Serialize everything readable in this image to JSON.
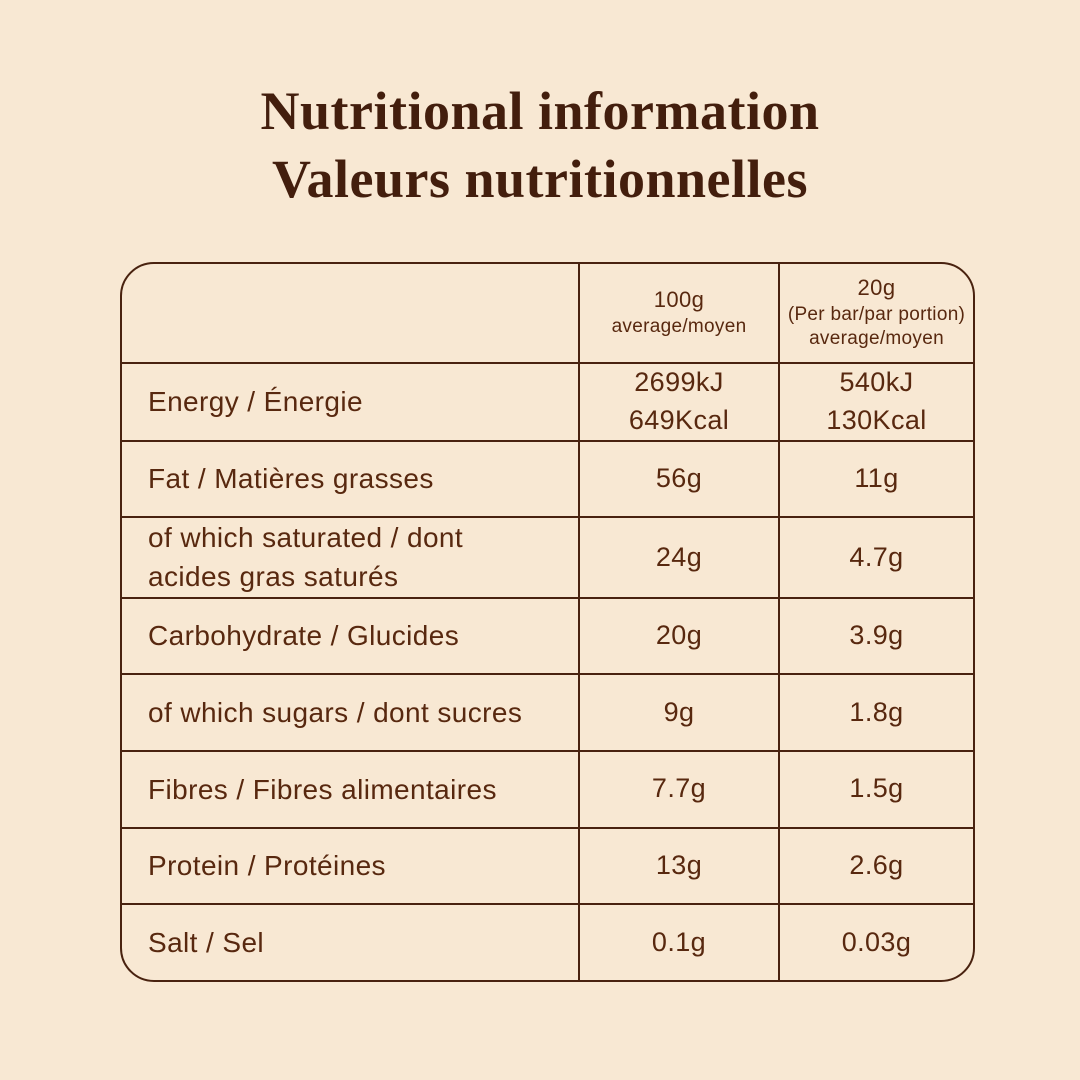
{
  "colors": {
    "background": "#f8e8d3",
    "title_text": "#431e0d",
    "table_text": "#58280f",
    "border": "#49220f"
  },
  "title": {
    "line1": "Nutritional information",
    "line2": "Valeurs nutritionnelles"
  },
  "table": {
    "header": {
      "col1": "",
      "col2": {
        "amount": "100g",
        "note": "average/moyen"
      },
      "col3": {
        "amount": "20g",
        "portion": "(Per bar/par portion)",
        "note": "average/moyen"
      }
    },
    "rows": [
      {
        "label": "Energy / Énergie",
        "per100g": "2699kJ\n649Kcal",
        "per20g": "540kJ\n130Kcal"
      },
      {
        "label": "Fat / Matières grasses",
        "per100g": "56g",
        "per20g": "11g"
      },
      {
        "label": "of which saturated / dont\nacides gras saturés",
        "per100g": "24g",
        "per20g": "4.7g"
      },
      {
        "label": "Carbohydrate / Glucides",
        "per100g": "20g",
        "per20g": "3.9g"
      },
      {
        "label": "of which sugars / dont sucres",
        "per100g": "9g",
        "per20g": "1.8g"
      },
      {
        "label": "Fibres / Fibres alimentaires",
        "per100g": "7.7g",
        "per20g": "1.5g"
      },
      {
        "label": "Protein / Protéines",
        "per100g": "13g",
        "per20g": "2.6g"
      },
      {
        "label": "Salt / Sel",
        "per100g": "0.1g",
        "per20g": "0.03g"
      }
    ]
  }
}
